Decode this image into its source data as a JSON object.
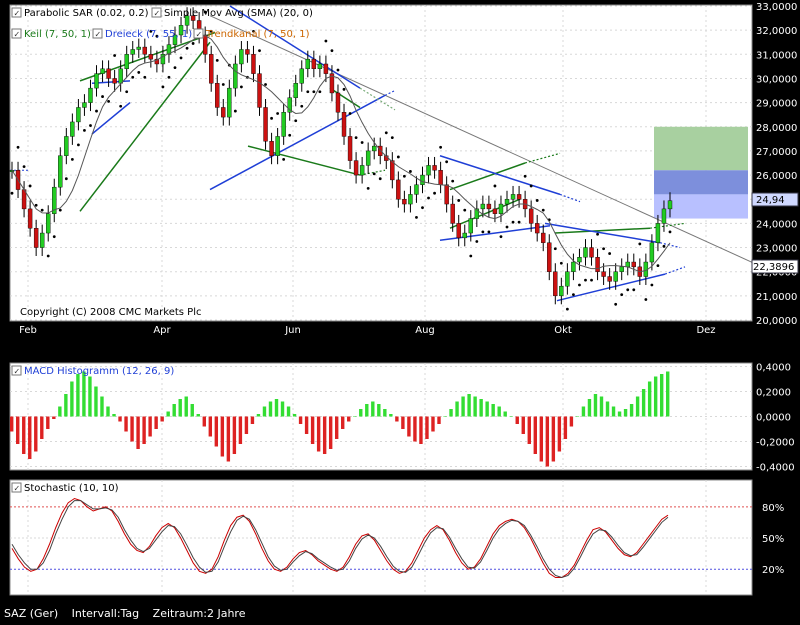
{
  "chart_data": [
    {
      "type": "candlestick",
      "title": "",
      "indicators_row1": [
        "Parabolic SAR (0.02, 0.2)",
        "Simple Mov Avg (SMA) (20, 0)"
      ],
      "indicators_row2": [
        "Keil (7, 50, 1)",
        "Dreieck (7, 55, 1)",
        "Trendkanal (7, 50, 1)"
      ],
      "indicator_colors": {
        "keil": "#1a7a1a",
        "dreieck": "#1f3fd6",
        "trendkanal": "#cc6600"
      },
      "copyright": "Copyright (C) 2008 CMC Markets Plc",
      "x_tick_labels": [
        "Feb",
        "Apr",
        "Jun",
        "Aug",
        "Okt",
        "Dez"
      ],
      "y_tick_labels": [
        "33,0000",
        "32,0000",
        "31,0000",
        "30,0000",
        "29,0000",
        "28,0000",
        "27,0000",
        "26,0000",
        "25,0000",
        "24,0000",
        "23,0000",
        "22,0000",
        "21,0000",
        "20,0000"
      ],
      "ylim": [
        20,
        33
      ],
      "current_price_label": "24,94",
      "trend_line_label": "22,3896",
      "closes": [
        26.2,
        25.4,
        24.6,
        23.8,
        23.0,
        23.6,
        24.4,
        25.5,
        26.8,
        27.6,
        28.2,
        28.8,
        29.0,
        29.6,
        30.2,
        30.4,
        30.0,
        29.8,
        30.4,
        31.0,
        31.2,
        31.3,
        31.0,
        30.8,
        30.6,
        31.0,
        31.4,
        31.8,
        32.2,
        32.6,
        32.4,
        31.8,
        31.0,
        29.8,
        28.8,
        28.4,
        29.6,
        30.6,
        31.2,
        31.0,
        30.2,
        28.8,
        27.4,
        26.8,
        27.6,
        28.6,
        29.2,
        29.8,
        30.4,
        30.8,
        30.4,
        30.6,
        30.2,
        29.4,
        28.6,
        27.6,
        26.6,
        26.0,
        26.4,
        27.0,
        27.2,
        26.8,
        26.6,
        25.8,
        25.0,
        24.8,
        25.2,
        25.6,
        26.0,
        26.4,
        26.2,
        25.6,
        24.8,
        24.0,
        23.4,
        23.6,
        24.2,
        24.6,
        24.8,
        24.6,
        24.4,
        24.8,
        25.0,
        25.2,
        25.0,
        24.6,
        24.0,
        23.6,
        23.2,
        22.0,
        21.0,
        21.4,
        22.0,
        22.4,
        22.6,
        23.0,
        22.6,
        22.0,
        21.8,
        21.6,
        22.0,
        22.2,
        22.4,
        22.2,
        21.8,
        22.4,
        23.2,
        24.0,
        24.6,
        24.94
      ]
    },
    {
      "type": "bar",
      "title": "MACD Histogramm (12, 26, 9)",
      "y_tick_labels": [
        "0,4000",
        "0,2000",
        "0,0000",
        "-0,2000",
        "-0,4000"
      ],
      "ylim": [
        -0.42,
        0.42
      ],
      "positive_color": "#33dd33",
      "negative_color": "#dd2222",
      "values": [
        -0.12,
        -0.22,
        -0.3,
        -0.34,
        -0.28,
        -0.18,
        -0.1,
        -0.02,
        0.08,
        0.18,
        0.28,
        0.34,
        0.36,
        0.32,
        0.24,
        0.16,
        0.08,
        0.02,
        -0.04,
        -0.12,
        -0.2,
        -0.26,
        -0.22,
        -0.16,
        -0.1,
        -0.04,
        0.04,
        0.1,
        0.14,
        0.16,
        0.1,
        0.02,
        -0.08,
        -0.16,
        -0.24,
        -0.32,
        -0.36,
        -0.3,
        -0.22,
        -0.14,
        -0.06,
        0.02,
        0.08,
        0.12,
        0.14,
        0.12,
        0.08,
        0.02,
        -0.06,
        -0.14,
        -0.22,
        -0.28,
        -0.3,
        -0.26,
        -0.18,
        -0.1,
        -0.04,
        0.0,
        0.06,
        0.1,
        0.12,
        0.1,
        0.06,
        0.02,
        -0.04,
        -0.1,
        -0.16,
        -0.2,
        -0.22,
        -0.18,
        -0.12,
        -0.06,
        0.0,
        0.06,
        0.12,
        0.16,
        0.18,
        0.16,
        0.14,
        0.12,
        0.1,
        0.08,
        0.04,
        0.0,
        -0.06,
        -0.14,
        -0.22,
        -0.3,
        -0.36,
        -0.4,
        -0.36,
        -0.28,
        -0.18,
        -0.08,
        0.0,
        0.08,
        0.14,
        0.18,
        0.16,
        0.12,
        0.08,
        0.04,
        0.06,
        0.1,
        0.16,
        0.22,
        0.28,
        0.32,
        0.34,
        0.36
      ]
    },
    {
      "type": "line",
      "title": "Stochastic (10, 10)",
      "y_tick_labels": [
        "80%",
        "50%",
        "20%"
      ],
      "ylim": [
        0,
        100
      ],
      "levels": [
        80,
        20
      ],
      "series": [
        {
          "name": "",
          "color": "#cc0000",
          "values": [
            40,
            30,
            22,
            18,
            20,
            30,
            44,
            60,
            74,
            84,
            88,
            86,
            80,
            76,
            78,
            80,
            76,
            66,
            54,
            44,
            38,
            36,
            42,
            52,
            60,
            64,
            60,
            50,
            38,
            26,
            18,
            16,
            20,
            32,
            48,
            62,
            70,
            72,
            66,
            54,
            40,
            28,
            20,
            18,
            22,
            30,
            36,
            38,
            34,
            28,
            24,
            20,
            18,
            22,
            32,
            44,
            52,
            54,
            48,
            38,
            28,
            20,
            16,
            18,
            26,
            38,
            50,
            58,
            62,
            58,
            48,
            36,
            26,
            20,
            22,
            30,
            42,
            54,
            62,
            66,
            68,
            66,
            60,
            50,
            38,
            26,
            16,
            12,
            12,
            16,
            24,
            36,
            48,
            58,
            60,
            56,
            48,
            40,
            34,
            32,
            36,
            44,
            52,
            60,
            68,
            72
          ]
        },
        {
          "name": "",
          "color": "#444444",
          "values": [
            44,
            34,
            26,
            20,
            20,
            26,
            38,
            54,
            68,
            80,
            86,
            86,
            82,
            78,
            78,
            79,
            77,
            70,
            58,
            48,
            40,
            37,
            40,
            48,
            56,
            62,
            61,
            54,
            43,
            31,
            22,
            17,
            18,
            27,
            42,
            56,
            67,
            71,
            68,
            58,
            45,
            32,
            23,
            19,
            20,
            27,
            33,
            37,
            35,
            30,
            26,
            22,
            19,
            20,
            28,
            40,
            49,
            53,
            50,
            42,
            32,
            23,
            18,
            17,
            22,
            33,
            45,
            55,
            60,
            59,
            51,
            40,
            30,
            22,
            21,
            27,
            38,
            50,
            59,
            64,
            67,
            66,
            62,
            53,
            42,
            30,
            20,
            14,
            12,
            14,
            21,
            32,
            44,
            54,
            58,
            57,
            51,
            43,
            36,
            33,
            34,
            41,
            49,
            57,
            65,
            70
          ]
        }
      ]
    }
  ],
  "footer": {
    "symbol": "SAZ (Ger)",
    "interval": "Intervall:Tag",
    "period": "Zeitraum:2 Jahre"
  }
}
